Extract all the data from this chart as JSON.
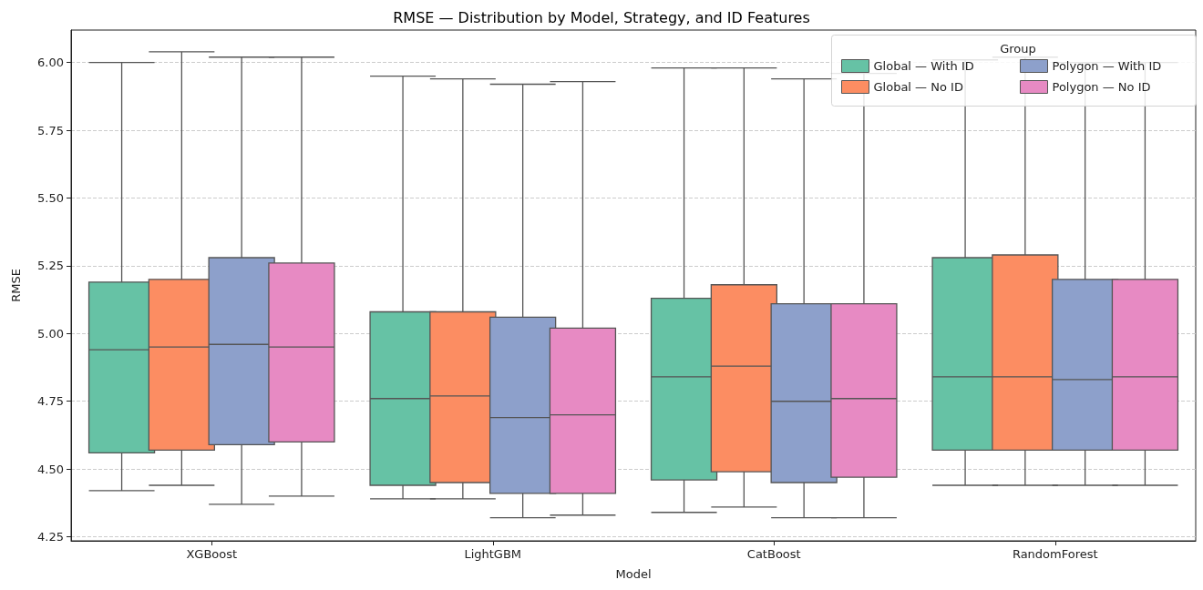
{
  "chart_data": {
    "type": "box",
    "title": "RMSE — Distribution by Model, Strategy, and ID Features",
    "xlabel": "Model",
    "ylabel": "RMSE",
    "legend_title": "Group",
    "categories": [
      "XGBoost",
      "LightGBM",
      "CatBoost",
      "RandomForest"
    ],
    "ylim": [
      4.235,
      6.12
    ],
    "yticks": [
      {
        "value": 4.25,
        "label": "4.25"
      },
      {
        "value": 4.5,
        "label": "4.50"
      },
      {
        "value": 4.75,
        "label": "4.75"
      },
      {
        "value": 5,
        "label": "5.00"
      },
      {
        "value": 5.25,
        "label": "5.25"
      },
      {
        "value": 5.5,
        "label": "5.50"
      },
      {
        "value": 5.75,
        "label": "5.75"
      },
      {
        "value": 6,
        "label": "6.00"
      }
    ],
    "grid": "y",
    "legend": "top right",
    "series": [
      {
        "name": "Global — With ID",
        "color": "#66c2a5",
        "boxes": [
          {
            "low": 4.42,
            "q1": 4.56,
            "median": 4.94,
            "q3": 5.19,
            "high": 6.0
          },
          {
            "low": 4.39,
            "q1": 4.44,
            "median": 4.76,
            "q3": 5.08,
            "high": 5.95
          },
          {
            "low": 4.34,
            "q1": 4.46,
            "median": 4.84,
            "q3": 5.13,
            "high": 5.98
          },
          {
            "low": 4.44,
            "q1": 4.57,
            "median": 4.84,
            "q3": 5.28,
            "high": 6.01
          }
        ]
      },
      {
        "name": "Global — No ID",
        "color": "#fc8d62",
        "boxes": [
          {
            "low": 4.44,
            "q1": 4.57,
            "median": 4.95,
            "q3": 5.2,
            "high": 6.04
          },
          {
            "low": 4.39,
            "q1": 4.45,
            "median": 4.77,
            "q3": 5.08,
            "high": 5.94
          },
          {
            "low": 4.36,
            "q1": 4.49,
            "median": 4.88,
            "q3": 5.18,
            "high": 5.98
          },
          {
            "low": 4.44,
            "q1": 4.57,
            "median": 4.84,
            "q3": 5.29,
            "high": 6.02
          }
        ]
      },
      {
        "name": "Polygon — With ID",
        "color": "#8da0cb",
        "boxes": [
          {
            "low": 4.37,
            "q1": 4.59,
            "median": 4.96,
            "q3": 5.28,
            "high": 6.02
          },
          {
            "low": 4.32,
            "q1": 4.41,
            "median": 4.69,
            "q3": 5.06,
            "high": 5.92
          },
          {
            "low": 4.32,
            "q1": 4.45,
            "median": 4.75,
            "q3": 5.11,
            "high": 5.94
          },
          {
            "low": 4.44,
            "q1": 4.57,
            "median": 4.83,
            "q3": 5.2,
            "high": 6.0
          }
        ]
      },
      {
        "name": "Polygon — No ID",
        "color": "#e78ac3",
        "boxes": [
          {
            "low": 4.4,
            "q1": 4.6,
            "median": 4.95,
            "q3": 5.26,
            "high": 6.02
          },
          {
            "low": 4.33,
            "q1": 4.41,
            "median": 4.7,
            "q3": 5.02,
            "high": 5.93
          },
          {
            "low": 4.32,
            "q1": 4.47,
            "median": 4.76,
            "q3": 5.11,
            "high": 5.96
          },
          {
            "low": 4.44,
            "q1": 4.57,
            "median": 4.84,
            "q3": 5.2,
            "high": 6.0
          }
        ]
      }
    ]
  }
}
